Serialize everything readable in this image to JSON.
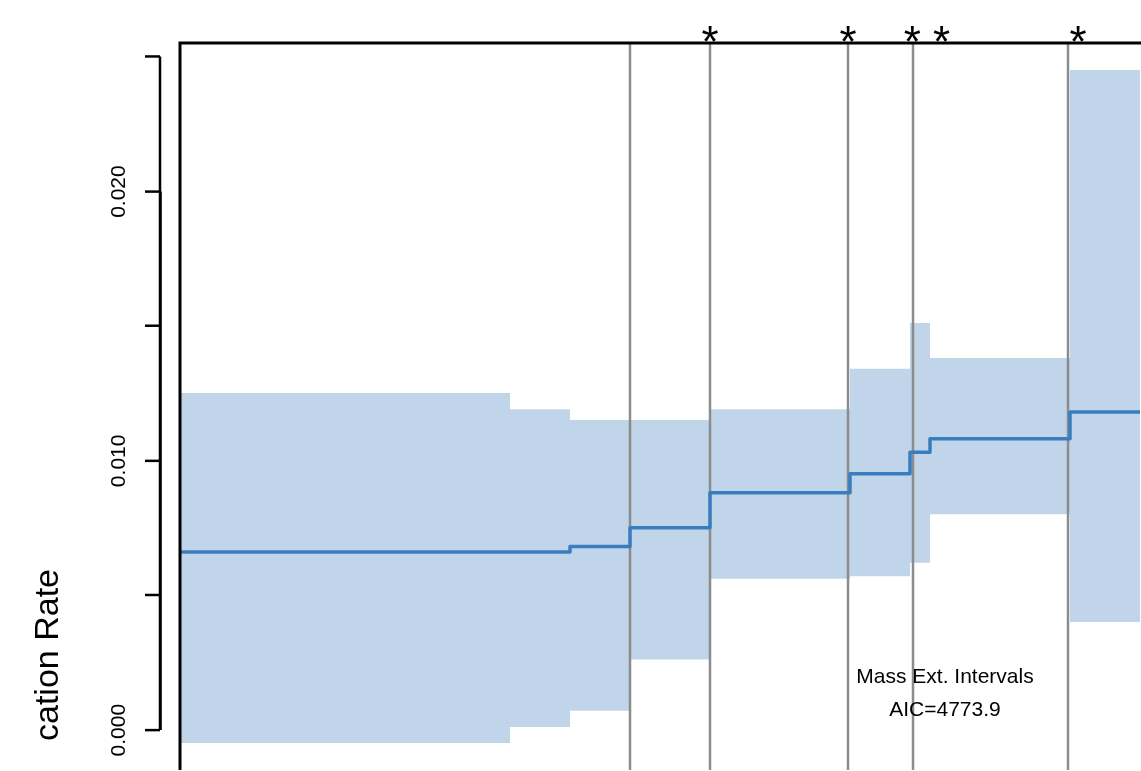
{
  "chart_data": {
    "type": "step",
    "ylabel": "cation Rate",
    "categories": [
      null,
      null,
      null,
      null,
      null,
      null,
      null,
      null,
      null,
      null,
      null,
      null,
      null,
      null,
      null,
      null,
      null,
      null,
      null,
      null,
      null,
      null,
      null,
      null,
      null,
      null,
      null,
      null,
      null,
      null,
      null,
      null,
      null,
      null,
      null,
      null,
      null,
      null,
      null,
      null,
      null,
      null,
      null,
      null,
      null,
      null,
      null,
      null,
      null
    ],
    "series": [
      {
        "color": "#3a7dbf",
        "values": [
          0.0066,
          0.0066,
          0.0066,
          0.0066,
          0.0066,
          0.0066,
          0.0066,
          0.0066,
          0.0066,
          0.0066,
          0.0066,
          0.0066,
          0.0066,
          0.0066,
          0.0066,
          0.0066,
          0.0066,
          0.0066,
          0.0066,
          0.0066,
          0.0068,
          0.0068,
          0.0068,
          0.0075,
          0.0075,
          0.0075,
          0.0075,
          0.0088,
          0.0088,
          0.0088,
          0.0088,
          0.0088,
          0.0088,
          0.0088,
          0.0095,
          0.0095,
          0.0095,
          0.0103,
          0.0108,
          0.0108,
          0.0108,
          0.0108,
          0.0108,
          0.0108,
          0.0108,
          0.0118,
          0.0118,
          0.0118,
          0.0118
        ],
        "upper": [
          0.0125,
          0.0125,
          0.0125,
          0.0125,
          0.0125,
          0.0125,
          0.0125,
          0.0125,
          0.0125,
          0.0125,
          0.0125,
          0.0125,
          0.0125,
          0.0125,
          0.0125,
          0.0125,
          0.0125,
          0.0119,
          0.0119,
          0.0119,
          0.0115,
          0.0115,
          0.0115,
          0.0115,
          0.0115,
          0.0115,
          0.0115,
          0.0119,
          0.0119,
          0.0119,
          0.0119,
          0.0119,
          0.0119,
          0.0119,
          0.0134,
          0.0134,
          0.0134,
          0.0151,
          0.0138,
          0.0138,
          0.0138,
          0.0138,
          0.0138,
          0.0138,
          0.0138,
          0.0245,
          0.0245,
          0.0245,
          0.0245
        ],
        "lower": [
          -0.0005,
          -0.0005,
          -0.0005,
          -0.0005,
          -0.0005,
          -0.0005,
          -0.0005,
          -0.0005,
          -0.0005,
          -0.0005,
          -0.0005,
          -0.0005,
          -0.0005,
          -0.0005,
          -0.0005,
          -0.0005,
          -0.0005,
          0.0001,
          0.0001,
          0.0001,
          0.0007,
          0.0007,
          0.0007,
          0.0026,
          0.0026,
          0.0026,
          0.0026,
          0.0056,
          0.0056,
          0.0056,
          0.0056,
          0.0056,
          0.0056,
          0.0056,
          0.0057,
          0.0057,
          0.0057,
          0.0062,
          0.008,
          0.008,
          0.008,
          0.008,
          0.008,
          0.008,
          0.008,
          0.004,
          0.004,
          0.004,
          0.004
        ]
      }
    ],
    "ylim": [
      -0.0015,
      0.0255
    ],
    "yticks": [
      {
        "value": 0,
        "label": "0.000"
      },
      {
        "value": 0.01,
        "label": "0.010"
      },
      {
        "value": 0.02,
        "label": "0.020"
      }
    ],
    "tick_labels": "y",
    "annotations": [
      "*",
      "*",
      "* *",
      "*",
      "Mass Ext. Intervals",
      "AIC=4773.9"
    ]
  }
}
